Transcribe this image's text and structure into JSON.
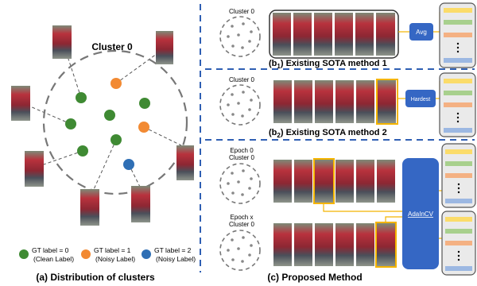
{
  "panel_a": {
    "cluster_title": "Cluster 0",
    "caption": "(a) Distribution of clusters",
    "legend": [
      {
        "title": "GT label = 0",
        "note": "(Clean Label)",
        "color": "#3f8a33"
      },
      {
        "title": "GT label = 1",
        "note": "(Noisy Label)",
        "color": "#f28a33"
      },
      {
        "title": "GT label = 2",
        "note": "(Noisy Label)",
        "color": "#2f6fb5"
      }
    ]
  },
  "panel_b1": {
    "cluster_label": "Cluster 0",
    "op_label": "Avg",
    "caption_prefix": "(b",
    "caption_sub": "1",
    "caption_suffix": ") Existing SOTA method 1"
  },
  "panel_b2": {
    "cluster_label": "Cluster 0",
    "op_label": "Hardest",
    "caption_prefix": "(b",
    "caption_sub": "2",
    "caption_suffix": ") Existing SOTA method 2"
  },
  "panel_c": {
    "top_label_line1": "Epoch 0",
    "top_label_line2": "Cluster 0",
    "bottom_label_line1": "Epoch x",
    "bottom_label_line2": "Cluster 0",
    "op_label": "AdaInCV",
    "caption": "(c) Proposed Method"
  },
  "colors": {
    "divider": "#2f5fb3",
    "op_box": "#3567c4",
    "yellow": "#fbdc6a",
    "green": "#a8d08d",
    "orange": "#f4b183",
    "blue": "#9cb8e2",
    "highlight": "#f4b400"
  }
}
